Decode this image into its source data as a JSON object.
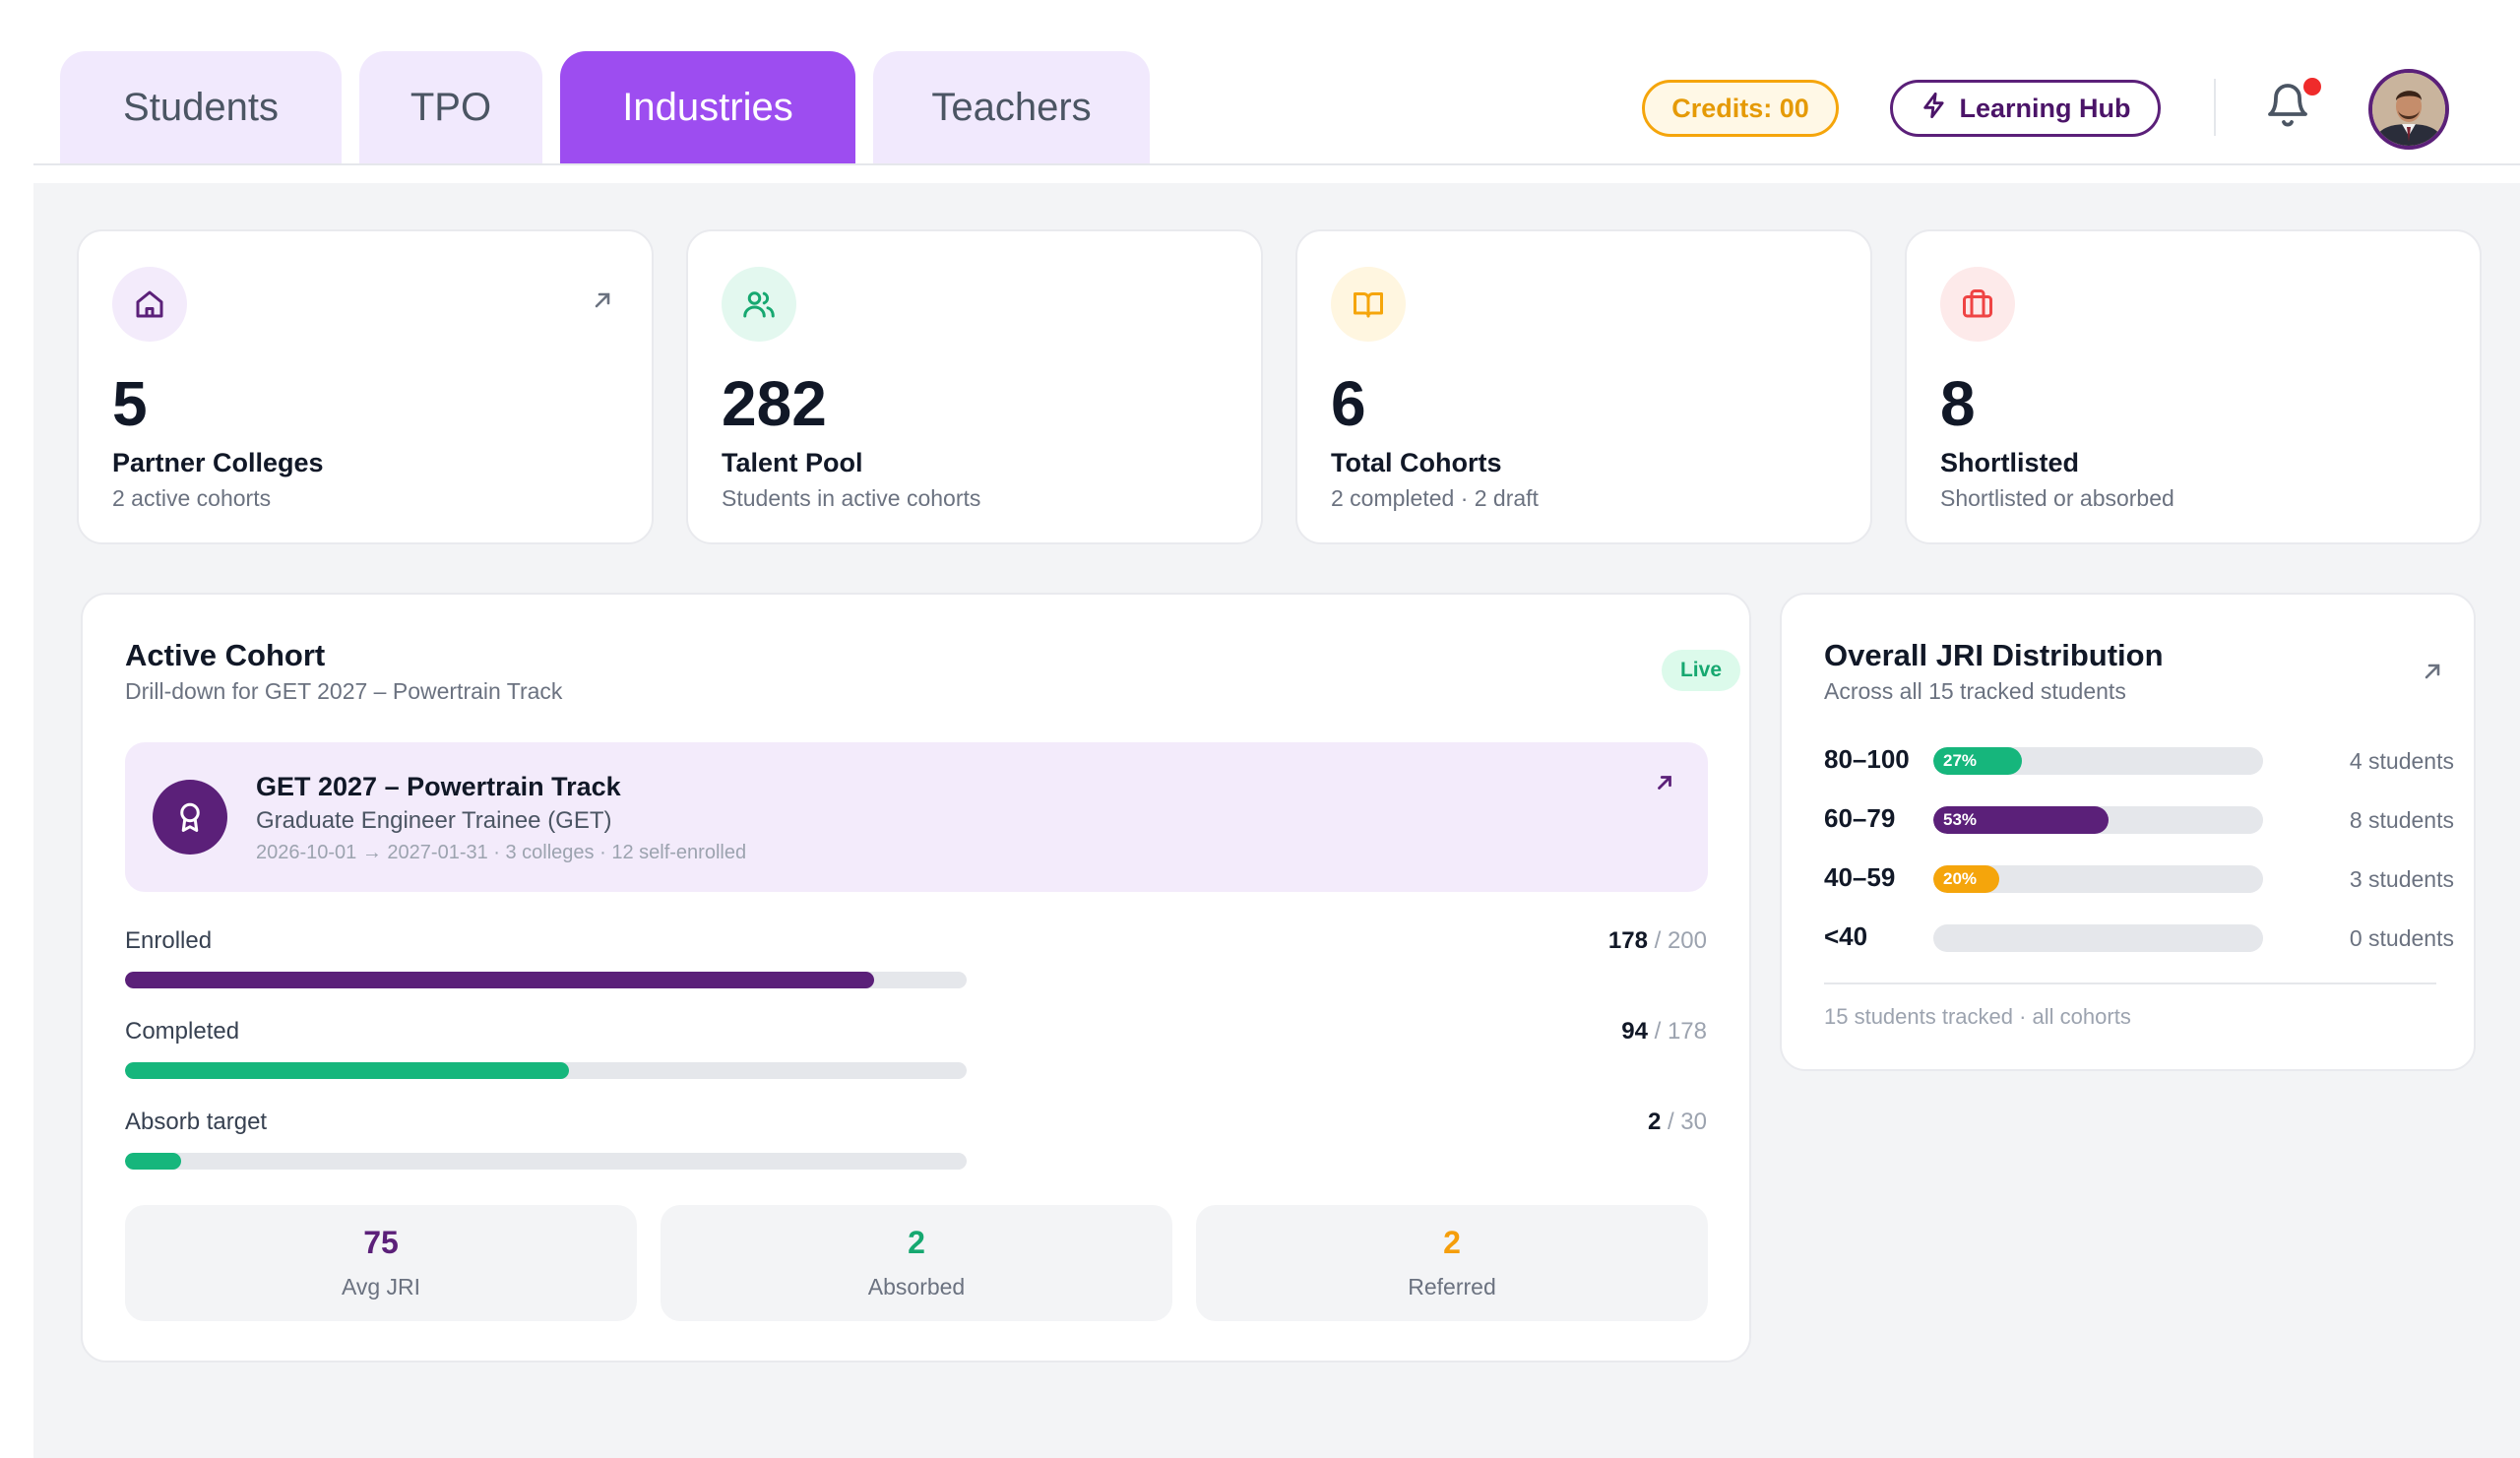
{
  "tabs": [
    {
      "label": "Students",
      "active": false
    },
    {
      "label": "TPO",
      "active": false
    },
    {
      "label": "Industries",
      "active": true
    },
    {
      "label": "Teachers",
      "active": false
    }
  ],
  "header": {
    "credits_label": "Credits: 00",
    "learning_hub_label": "Learning Hub",
    "notification_unread": true,
    "icons": [
      "bolt-icon",
      "bell-icon",
      "avatar"
    ]
  },
  "stats": [
    {
      "icon": "home-icon",
      "value": "5",
      "label": "Partner Colleges",
      "sub": "2 active cohorts",
      "color": "#5b2079"
    },
    {
      "icon": "users-icon",
      "value": "282",
      "label": "Talent Pool",
      "sub": "Students in active cohorts",
      "color": "#16a870"
    },
    {
      "icon": "book-icon",
      "value": "6",
      "label": "Total Cohorts",
      "sub": "2 completed · 2 draft",
      "color": "#f5a50b"
    },
    {
      "icon": "briefcase-icon",
      "value": "8",
      "label": "Shortlisted",
      "sub": "Shortlisted or absorbed",
      "color": "#ef4444"
    }
  ],
  "cohort": {
    "title": "Active Cohort",
    "subtitle": "Drill-down for GET 2027 – Powertrain Track",
    "status": "Live",
    "track": {
      "name": "GET 2027 – Powertrain Track",
      "role": "Graduate Engineer Trainee (GET)",
      "meta": "2026-10-01 → 2027-01-31 · 3 colleges · 12 self-enrolled"
    },
    "metrics": [
      {
        "label": "Enrolled",
        "value": "178",
        "total": " / 200",
        "fraction": 0.89,
        "color": "#5b2079"
      },
      {
        "label": "Completed",
        "value": "94",
        "total": " / 178",
        "fraction": 0.528,
        "color": "#16b67c"
      },
      {
        "label": "Absorb target",
        "value": "2",
        "total": " / 30",
        "fraction": 0.067,
        "color": "#16b67c"
      }
    ],
    "kpis": [
      {
        "value": "75",
        "label": "Avg JRI",
        "color": "#5b2079"
      },
      {
        "value": "2",
        "label": "Absorbed",
        "color": "#16a870"
      },
      {
        "value": "2",
        "label": "Referred",
        "color": "#f59e0b"
      }
    ]
  },
  "jri": {
    "title": "Overall JRI Distribution",
    "subtitle": "Across all 15 tracked students",
    "rows": [
      {
        "range": "80–100",
        "pct_label": "27%",
        "fraction": 0.27,
        "color": "#16b67c",
        "count": "4 students"
      },
      {
        "range": "60–79",
        "pct_label": "53%",
        "fraction": 0.53,
        "color": "#5b2079",
        "count": "8 students"
      },
      {
        "range": "40–59",
        "pct_label": "20%",
        "fraction": 0.2,
        "color": "#f5a50b",
        "count": "3 students"
      },
      {
        "range": "<40",
        "pct_label": "",
        "fraction": 0,
        "color": "#9ca3af",
        "count": "0 students"
      }
    ],
    "footer": "15 students tracked · all cohorts"
  }
}
